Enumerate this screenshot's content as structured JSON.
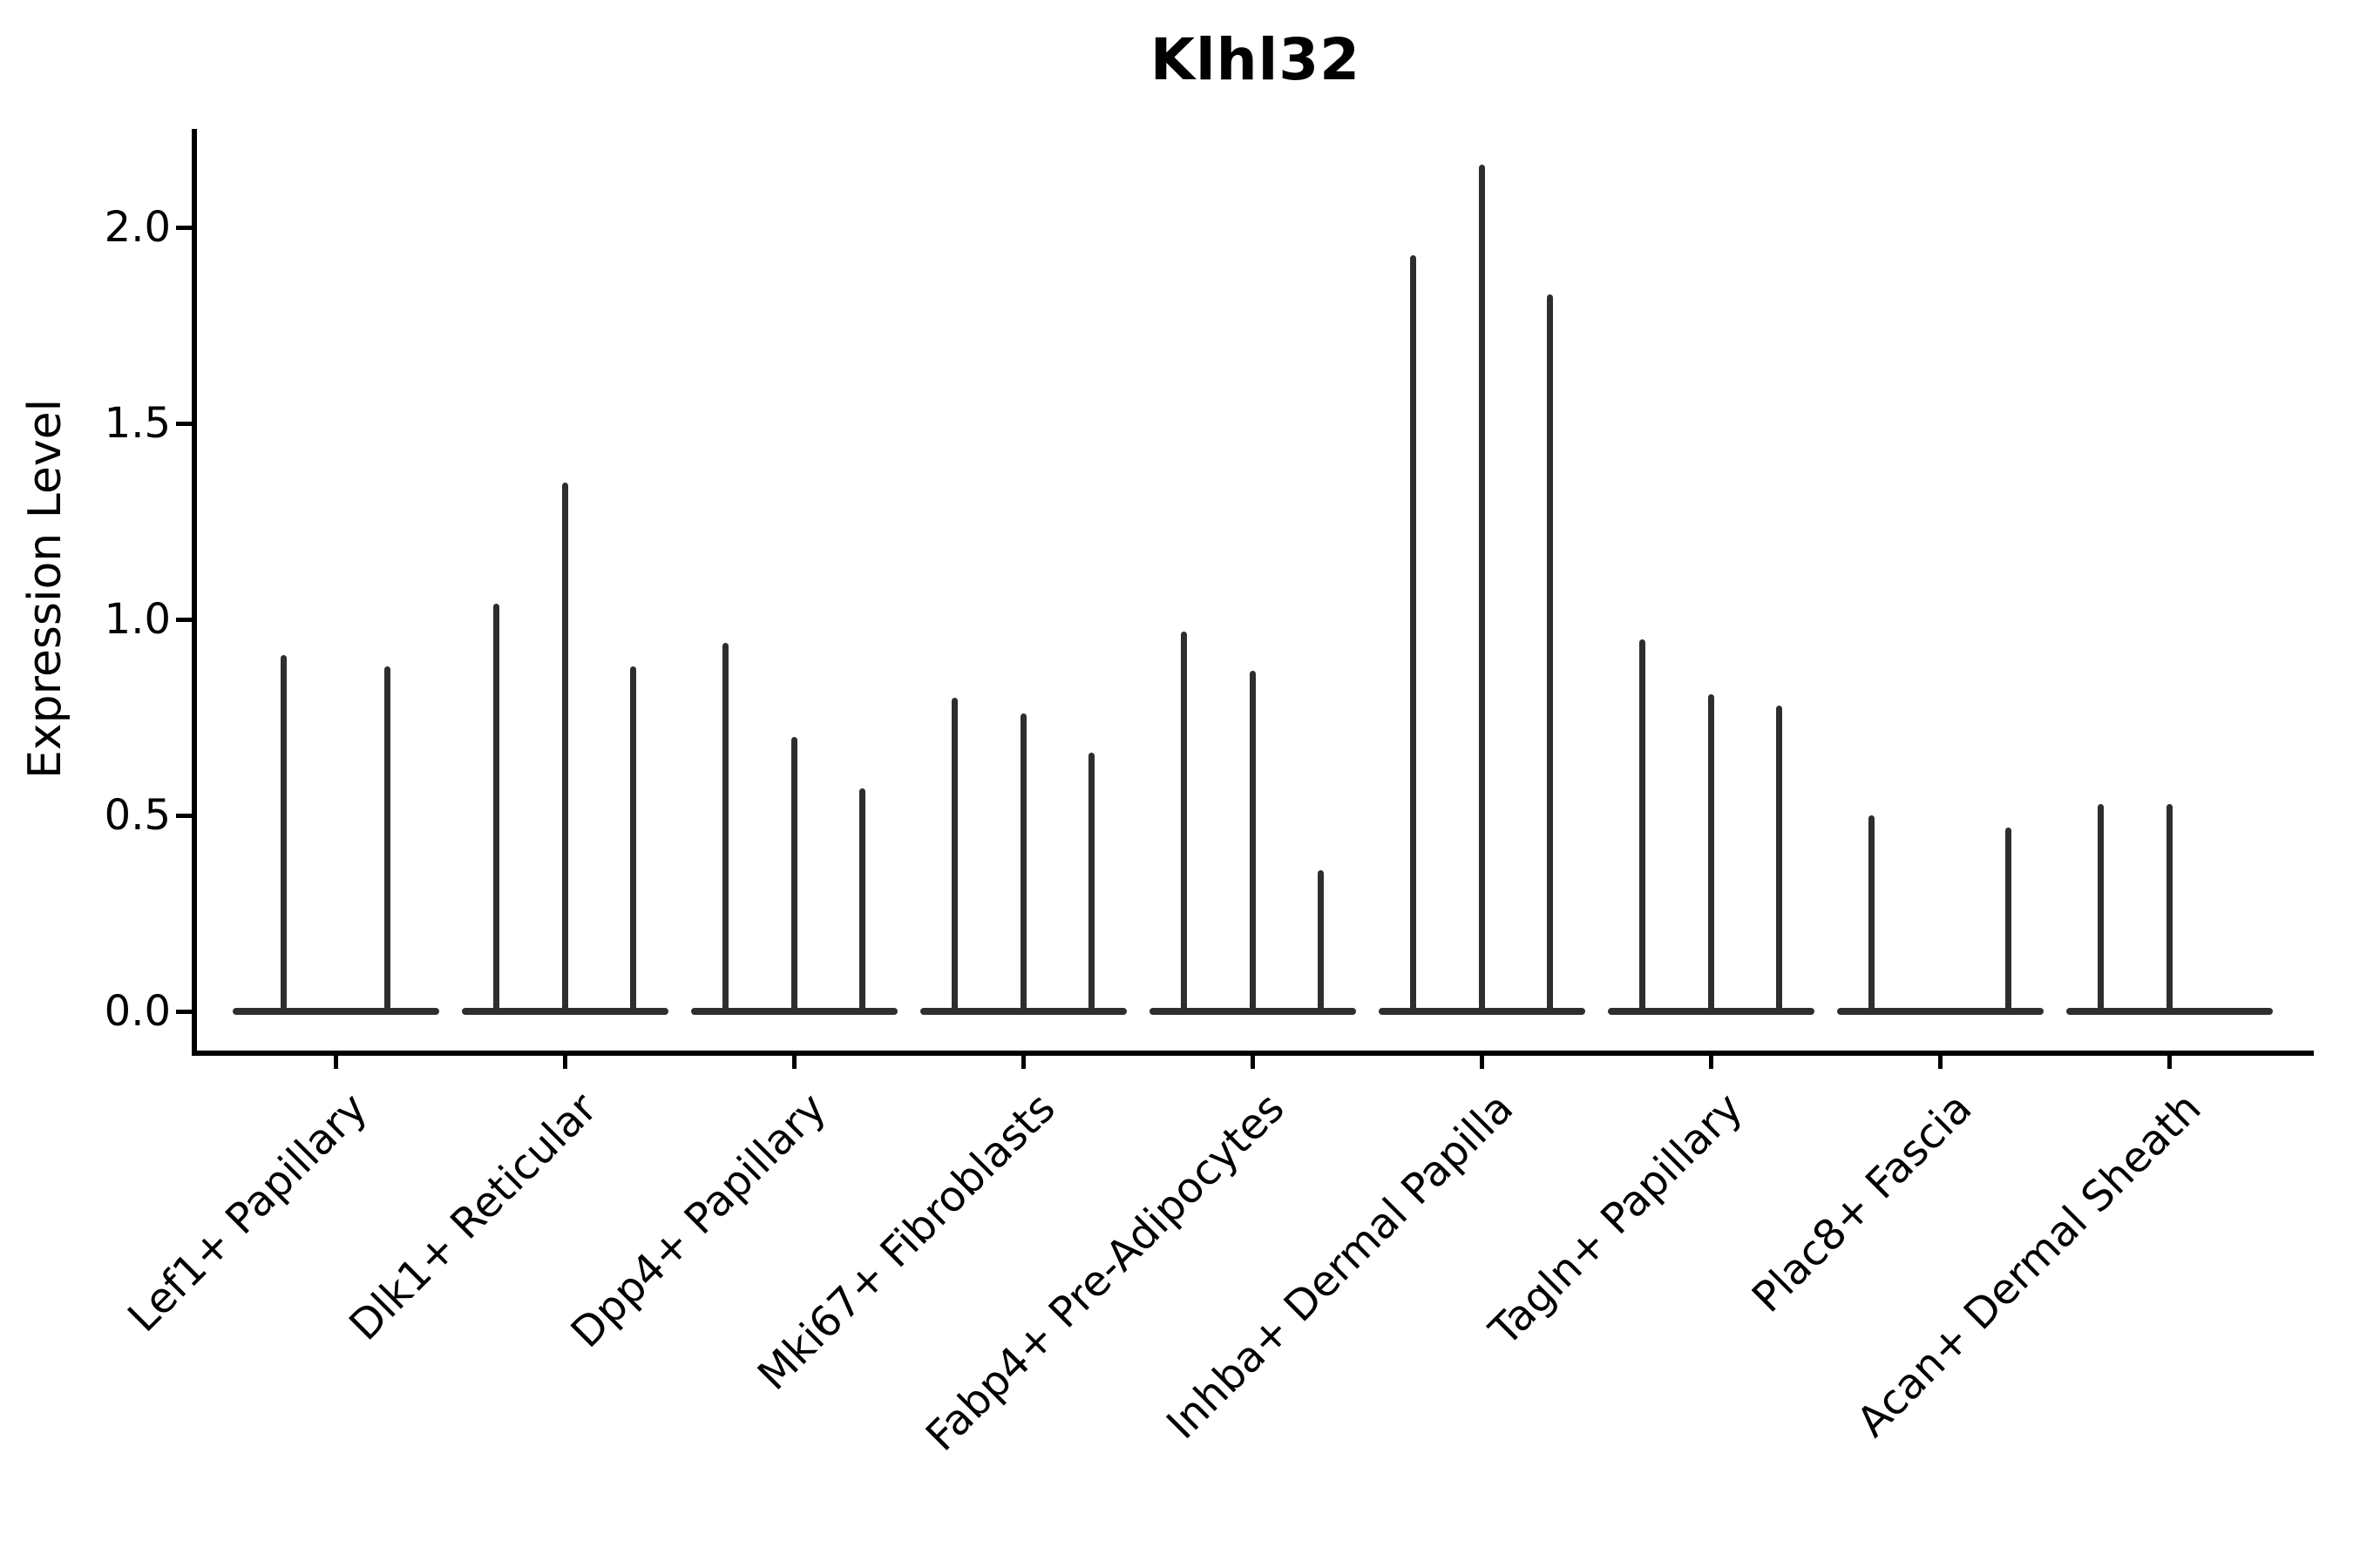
{
  "chart_data": {
    "type": "violin",
    "title": "Klhl32",
    "xlabel": "",
    "ylabel": "Expression Level",
    "ylim": [
      -0.11,
      2.25
    ],
    "grid": false,
    "legend": "none",
    "yticks": [
      0.0,
      0.5,
      1.0,
      1.5,
      2.0
    ],
    "ytick_labels": [
      "0.0",
      "0.5",
      "1.0",
      "1.5",
      "2.0"
    ],
    "categories": [
      "Lef1+ Papillary",
      "Dlk1+ Reticular",
      "Dpp4+ Papillary",
      "Mki67+ Fibroblasts",
      "Fabp4+ Pre-Adipocytes",
      "Inhba+ Dermal Papilla",
      "Tagln+ Papillary",
      "Plac8+ Fascia",
      "Acan+ Dermal Sheath"
    ],
    "groups": [
      {
        "category": "Lef1+ Papillary",
        "violins": [
          {
            "offset": -0.225,
            "max": 0.91
          },
          {
            "offset": 0.225,
            "max": 0.88
          }
        ]
      },
      {
        "category": "Dlk1+ Reticular",
        "violins": [
          {
            "offset": -0.3,
            "max": 1.04
          },
          {
            "offset": 0,
            "max": 1.35
          },
          {
            "offset": 0.3,
            "max": 0.88
          }
        ]
      },
      {
        "category": "Dpp4+ Papillary",
        "violins": [
          {
            "offset": -0.3,
            "max": 0.94
          },
          {
            "offset": 0,
            "max": 0.7
          },
          {
            "offset": 0.3,
            "max": 0.57
          }
        ]
      },
      {
        "category": "Mki67+ Fibroblasts",
        "violins": [
          {
            "offset": -0.3,
            "max": 0.8
          },
          {
            "offset": 0,
            "max": 0.76
          },
          {
            "offset": 0.3,
            "max": 0.66
          }
        ]
      },
      {
        "category": "Fabp4+ Pre-Adipocytes",
        "violins": [
          {
            "offset": -0.3,
            "max": 0.97
          },
          {
            "offset": 0,
            "max": 0.87
          },
          {
            "offset": 0.3,
            "max": 0.36
          }
        ]
      },
      {
        "category": "Inhba+ Dermal Papilla",
        "violins": [
          {
            "offset": -0.3,
            "max": 1.93
          },
          {
            "offset": 0,
            "max": 2.16
          },
          {
            "offset": 0.3,
            "max": 1.83
          }
        ]
      },
      {
        "category": "Tagln+ Papillary",
        "violins": [
          {
            "offset": -0.3,
            "max": 0.95
          },
          {
            "offset": 0,
            "max": 0.81
          },
          {
            "offset": 0.3,
            "max": 0.78
          }
        ]
      },
      {
        "category": "Plac8+ Fascia",
        "violins": [
          {
            "offset": -0.3,
            "max": 0.5
          },
          {
            "offset": 0.3,
            "max": 0.47
          }
        ]
      },
      {
        "category": "Acan+ Dermal Sheath",
        "violins": [
          {
            "offset": -0.3,
            "max": 0.53
          },
          {
            "offset": 0,
            "max": 0.53
          }
        ]
      }
    ],
    "colors": {
      "violin_line": "#2e2e2e",
      "axis": "#000000",
      "background": "#ffffff"
    }
  }
}
